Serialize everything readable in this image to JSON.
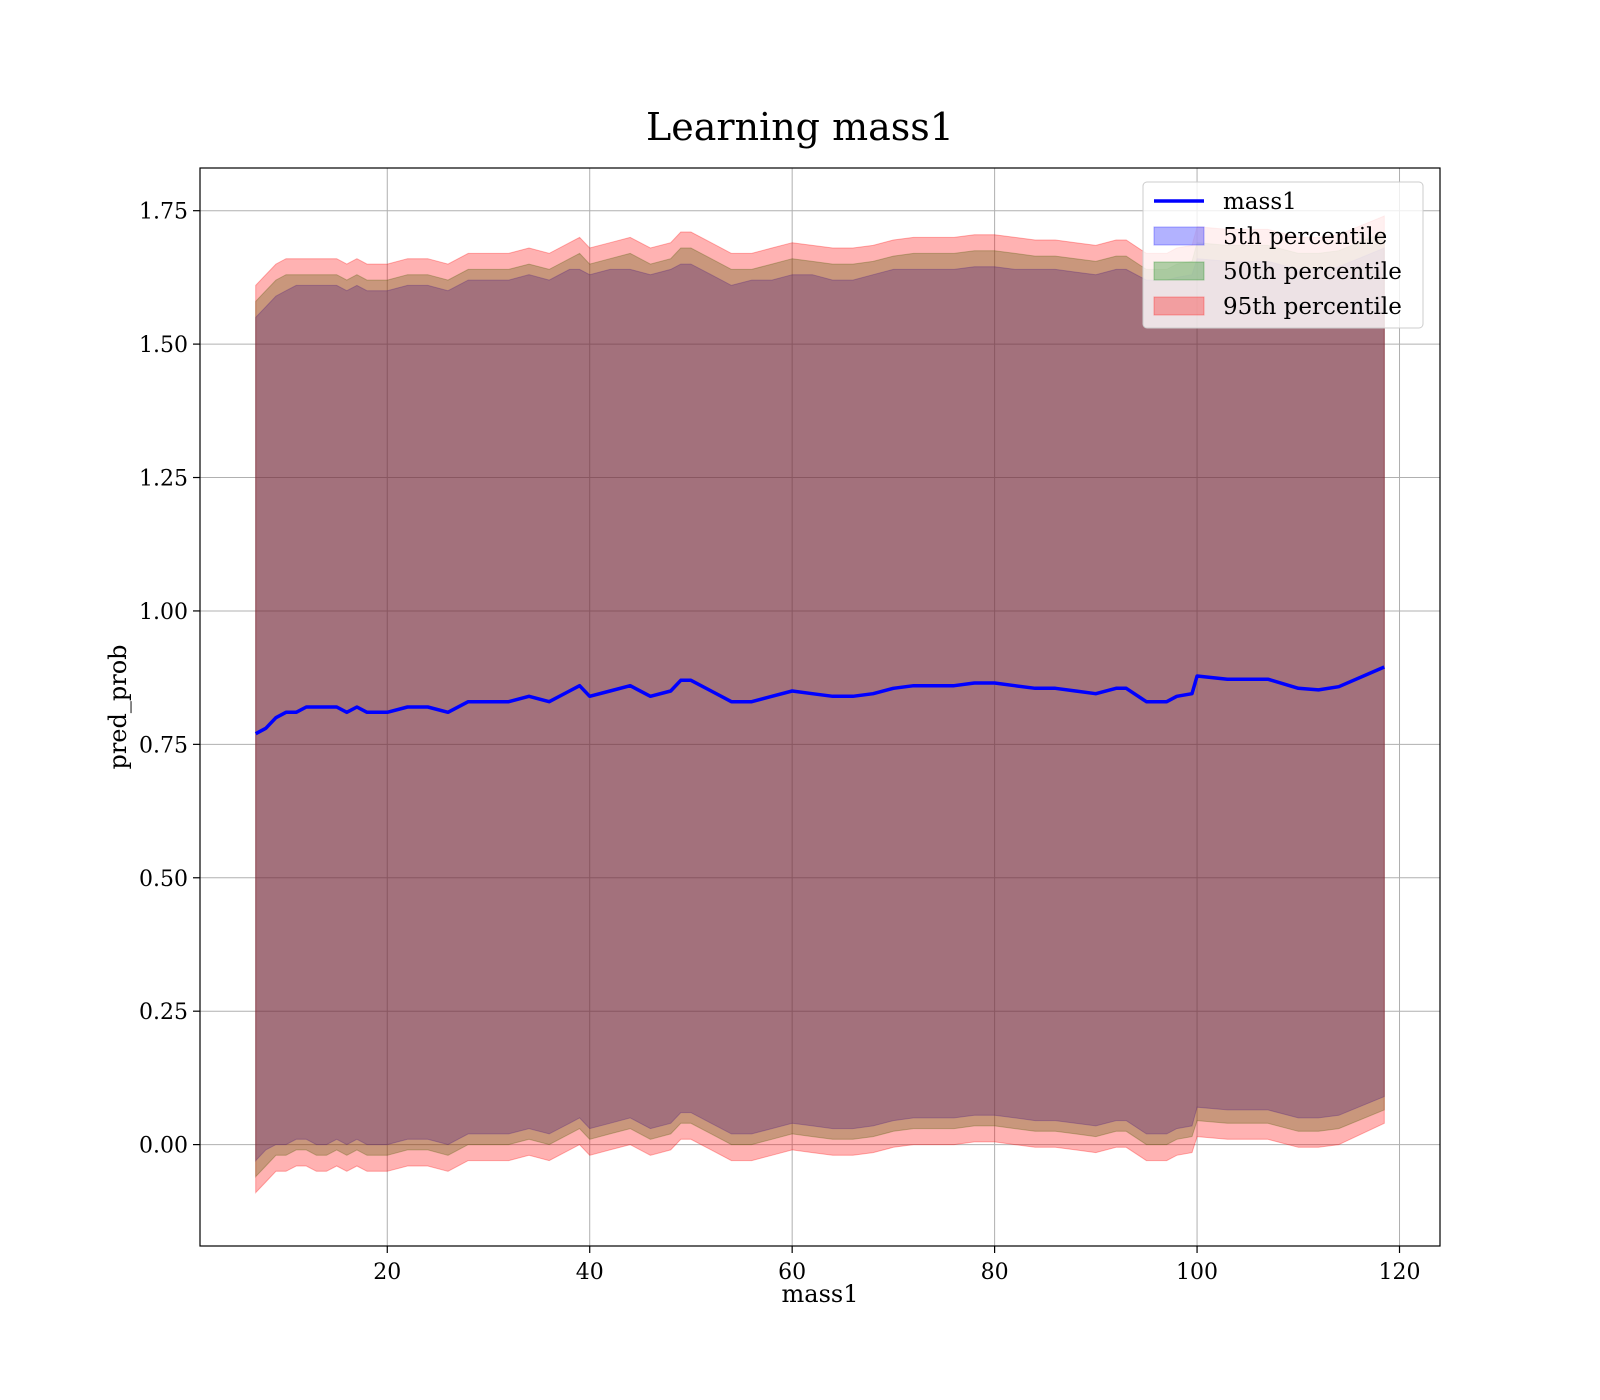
{
  "chart_data": {
    "type": "line",
    "title": "Learning mass1",
    "xlabel": "mass1",
    "ylabel": "pred_prob",
    "xlim": [
      1.5,
      124
    ],
    "ylim": [
      -0.19,
      1.83
    ],
    "xticks": [
      20,
      40,
      60,
      80,
      100,
      120
    ],
    "yticks": [
      0.0,
      0.25,
      0.5,
      0.75,
      1.0,
      1.25,
      1.5,
      1.75
    ],
    "ytick_labels": [
      "0.00",
      "0.25",
      "0.50",
      "0.75",
      "1.00",
      "1.25",
      "1.50",
      "1.75"
    ],
    "grid": true,
    "legend_position": "top-right",
    "legend": [
      "mass1",
      "5th percentile",
      "50th percentile",
      "95th percentile"
    ],
    "colors": {
      "line": "#0000ff",
      "band_5": "#0000ff",
      "band_50": "#008000",
      "band_95": "#ff0000",
      "grid": "#b0b0b0"
    },
    "band_opacity": {
      "band_5": 0.3,
      "band_50": 0.3,
      "band_95": 0.3
    },
    "x": [
      7,
      8,
      9,
      10,
      11,
      12,
      13,
      14,
      15,
      16,
      17,
      18,
      20,
      22,
      24,
      26,
      28,
      30,
      32,
      34,
      36,
      38,
      39,
      40,
      42,
      44,
      46,
      48,
      49,
      50,
      52,
      54,
      56,
      58,
      60,
      62,
      64,
      66,
      68,
      70,
      72,
      74,
      76,
      78,
      80,
      82,
      84,
      86,
      88,
      90,
      92,
      93,
      95,
      97,
      98,
      99.5,
      100,
      103,
      107,
      110,
      112,
      114,
      118.5
    ],
    "series": [
      {
        "name": "mass1",
        "values": [
          0.77,
          0.78,
          0.8,
          0.81,
          0.81,
          0.82,
          0.82,
          0.82,
          0.82,
          0.81,
          0.82,
          0.81,
          0.81,
          0.82,
          0.82,
          0.81,
          0.83,
          0.83,
          0.83,
          0.84,
          0.83,
          0.85,
          0.86,
          0.84,
          0.85,
          0.86,
          0.84,
          0.85,
          0.87,
          0.87,
          0.85,
          0.83,
          0.83,
          0.84,
          0.85,
          0.845,
          0.84,
          0.84,
          0.845,
          0.855,
          0.86,
          0.86,
          0.86,
          0.865,
          0.865,
          0.86,
          0.855,
          0.855,
          0.85,
          0.845,
          0.855,
          0.855,
          0.83,
          0.83,
          0.84,
          0.845,
          0.878,
          0.872,
          0.872,
          0.855,
          0.852,
          0.858,
          0.895
        ]
      },
      {
        "name": "5th percentile",
        "lower": [
          -0.03,
          -0.01,
          0.0,
          0.0,
          0.01,
          0.01,
          0.0,
          0.0,
          0.01,
          0.0,
          0.01,
          0.0,
          0.0,
          0.01,
          0.01,
          0.0,
          0.02,
          0.02,
          0.02,
          0.03,
          0.02,
          0.04,
          0.05,
          0.03,
          0.04,
          0.05,
          0.03,
          0.04,
          0.06,
          0.06,
          0.04,
          0.02,
          0.02,
          0.03,
          0.04,
          0.035,
          0.03,
          0.03,
          0.035,
          0.045,
          0.05,
          0.05,
          0.05,
          0.055,
          0.055,
          0.05,
          0.045,
          0.045,
          0.04,
          0.035,
          0.045,
          0.045,
          0.02,
          0.02,
          0.03,
          0.035,
          0.07,
          0.065,
          0.065,
          0.05,
          0.05,
          0.055,
          0.09
        ],
        "upper": [
          1.55,
          1.57,
          1.59,
          1.6,
          1.61,
          1.61,
          1.61,
          1.61,
          1.61,
          1.6,
          1.61,
          1.6,
          1.6,
          1.61,
          1.61,
          1.6,
          1.62,
          1.62,
          1.62,
          1.63,
          1.62,
          1.64,
          1.64,
          1.63,
          1.64,
          1.64,
          1.63,
          1.64,
          1.65,
          1.65,
          1.63,
          1.61,
          1.62,
          1.62,
          1.63,
          1.63,
          1.62,
          1.62,
          1.63,
          1.64,
          1.64,
          1.64,
          1.64,
          1.645,
          1.645,
          1.64,
          1.64,
          1.64,
          1.635,
          1.63,
          1.64,
          1.64,
          1.62,
          1.62,
          1.625,
          1.63,
          1.66,
          1.655,
          1.655,
          1.64,
          1.64,
          1.645,
          1.68
        ]
      },
      {
        "name": "50th percentile",
        "lower": [
          -0.06,
          -0.04,
          -0.02,
          -0.02,
          -0.01,
          -0.01,
          -0.02,
          -0.02,
          -0.01,
          -0.02,
          -0.01,
          -0.02,
          -0.02,
          -0.01,
          -0.01,
          -0.02,
          0.0,
          0.0,
          0.0,
          0.01,
          0.0,
          0.02,
          0.03,
          0.01,
          0.02,
          0.03,
          0.01,
          0.02,
          0.04,
          0.04,
          0.02,
          0.0,
          0.0,
          0.01,
          0.02,
          0.015,
          0.01,
          0.01,
          0.015,
          0.025,
          0.03,
          0.03,
          0.03,
          0.035,
          0.035,
          0.03,
          0.025,
          0.025,
          0.02,
          0.015,
          0.025,
          0.025,
          0.0,
          0.0,
          0.01,
          0.015,
          0.045,
          0.04,
          0.04,
          0.025,
          0.025,
          0.03,
          0.065
        ],
        "upper": [
          1.58,
          1.6,
          1.62,
          1.63,
          1.63,
          1.63,
          1.63,
          1.63,
          1.63,
          1.62,
          1.63,
          1.62,
          1.62,
          1.63,
          1.63,
          1.62,
          1.64,
          1.64,
          1.64,
          1.65,
          1.64,
          1.66,
          1.67,
          1.65,
          1.66,
          1.67,
          1.65,
          1.66,
          1.68,
          1.68,
          1.66,
          1.64,
          1.64,
          1.65,
          1.66,
          1.655,
          1.65,
          1.65,
          1.655,
          1.665,
          1.67,
          1.67,
          1.67,
          1.675,
          1.675,
          1.67,
          1.665,
          1.665,
          1.66,
          1.655,
          1.665,
          1.665,
          1.64,
          1.64,
          1.65,
          1.655,
          1.69,
          1.685,
          1.685,
          1.67,
          1.67,
          1.675,
          1.71
        ]
      },
      {
        "name": "95th percentile",
        "lower": [
          -0.09,
          -0.07,
          -0.05,
          -0.05,
          -0.04,
          -0.04,
          -0.05,
          -0.05,
          -0.04,
          -0.05,
          -0.04,
          -0.05,
          -0.05,
          -0.04,
          -0.04,
          -0.05,
          -0.03,
          -0.03,
          -0.03,
          -0.02,
          -0.03,
          -0.01,
          0.0,
          -0.02,
          -0.01,
          0.0,
          -0.02,
          -0.01,
          0.01,
          0.01,
          -0.01,
          -0.03,
          -0.03,
          -0.02,
          -0.01,
          -0.015,
          -0.02,
          -0.02,
          -0.015,
          -0.005,
          0.0,
          0.0,
          0.0,
          0.005,
          0.005,
          0.0,
          -0.005,
          -0.005,
          -0.01,
          -0.015,
          -0.005,
          -0.005,
          -0.03,
          -0.03,
          -0.02,
          -0.015,
          0.015,
          0.01,
          0.01,
          -0.005,
          -0.005,
          0.0,
          0.04
        ],
        "upper": [
          1.61,
          1.63,
          1.65,
          1.66,
          1.66,
          1.66,
          1.66,
          1.66,
          1.66,
          1.65,
          1.66,
          1.65,
          1.65,
          1.66,
          1.66,
          1.65,
          1.67,
          1.67,
          1.67,
          1.68,
          1.67,
          1.69,
          1.7,
          1.68,
          1.69,
          1.7,
          1.68,
          1.69,
          1.71,
          1.71,
          1.69,
          1.67,
          1.67,
          1.68,
          1.69,
          1.685,
          1.68,
          1.68,
          1.685,
          1.695,
          1.7,
          1.7,
          1.7,
          1.705,
          1.705,
          1.7,
          1.695,
          1.695,
          1.69,
          1.685,
          1.695,
          1.695,
          1.67,
          1.67,
          1.68,
          1.685,
          1.72,
          1.715,
          1.715,
          1.7,
          1.7,
          1.705,
          1.74
        ]
      }
    ]
  }
}
